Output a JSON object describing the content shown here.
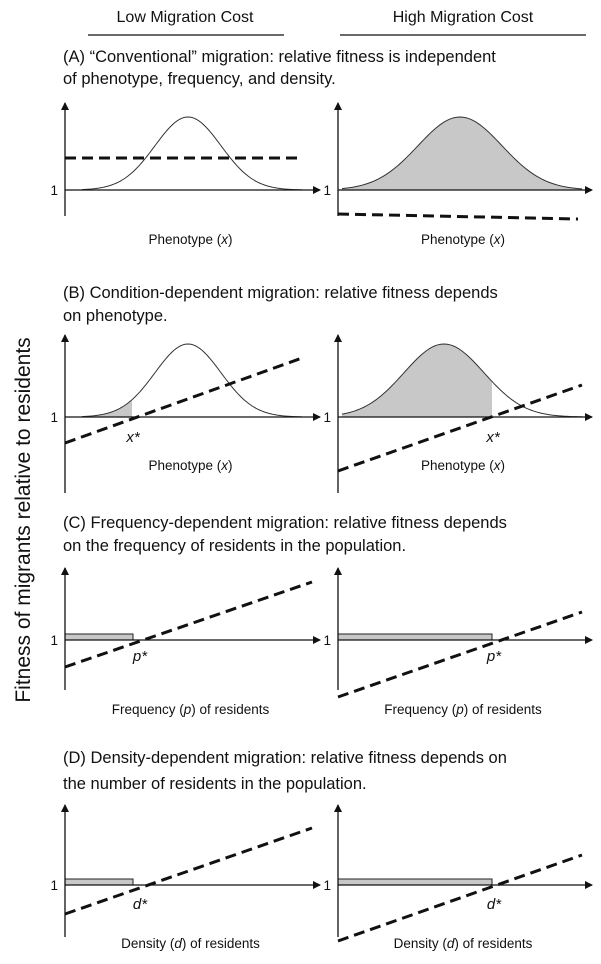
{
  "headers": [
    "Low Migration Cost",
    "High Migration Cost"
  ],
  "y_axis_label": "Fitness of migrants relative to residents",
  "panels": [
    {
      "caption": [
        "(A) “Conventional” migration: relative fitness is independent",
        "of phenotype, frequency, and density."
      ],
      "unity": "1",
      "x_label": [
        "Phenotype (",
        "x",
        ")"
      ]
    },
    {
      "caption": [
        "(B) Condition-dependent migration: relative fitness depends",
        "on phenotype."
      ],
      "unity": "1",
      "x_label": [
        "Phenotype (",
        "x",
        ")"
      ],
      "marker": "x*"
    },
    {
      "caption": [
        "(C) Frequency-dependent migration: relative fitness depends",
        "on the frequency of residents in the population."
      ],
      "unity": "1",
      "x_label": [
        "Frequency (",
        "p",
        ") of residents"
      ],
      "marker": "p*"
    },
    {
      "caption": [
        "(D) Density-dependent migration: relative fitness depends on",
        "the number of residents in the population."
      ],
      "unity": "1",
      "x_label": [
        "Density (",
        "d",
        ") of residents"
      ],
      "marker": "d*"
    }
  ]
}
